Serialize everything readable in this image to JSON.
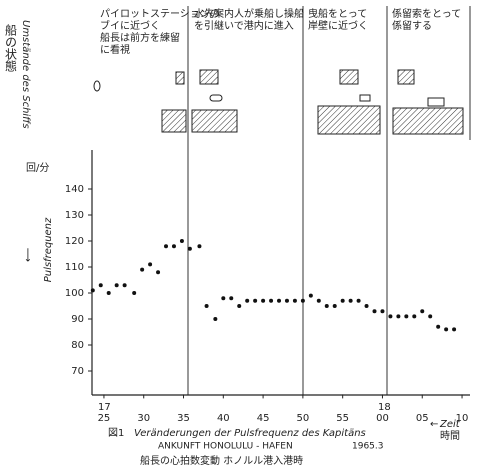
{
  "chart_data": {
    "type": "scatter",
    "title_lines": [
      "Veränderungen der Pulsfrequenz des Kapitäns",
      "ANKUNFT    HONOLULU - HAFEN",
      "1965.3"
    ],
    "figure_label": "図1",
    "caption_ja": "船長の心拍数変動    ホノルル港入港時",
    "ylabel": "Pulsfrequenz",
    "ylabel_unit": "回/分",
    "xlabel": "Zeit",
    "xlabel_ja": "時間",
    "hours": [
      "17",
      "18"
    ],
    "ship_state_ja": "船の状態",
    "ship_state_de": "Umstände des Schiffs",
    "phases": [
      [
        "パイロットステーションの",
        "ブイに近づく",
        "船長は前方を練留",
        "に看視"
      ],
      [
        "水先案内人が乗船し操船",
        "を引継いで港内に進入"
      ],
      [
        "曳船をとって",
        "岸壁に近づく"
      ],
      [
        "係留索をとって",
        "係留する"
      ]
    ],
    "x": [
      23.6,
      24.6,
      25.6,
      26.6,
      27.6,
      28.8,
      29.8,
      30.8,
      31.8,
      32.8,
      33.8,
      34.8,
      35.8,
      37,
      37.9,
      39,
      40,
      41,
      42,
      43,
      44,
      45,
      46,
      47,
      48,
      49,
      50,
      51,
      52,
      53,
      54,
      55,
      56,
      57,
      58,
      59,
      60,
      61,
      62,
      63,
      64,
      65,
      66,
      67,
      68,
      69
    ],
    "values": [
      101,
      103,
      100,
      103,
      103,
      100,
      109,
      111,
      108,
      118,
      118,
      120,
      117,
      118,
      95,
      90,
      98,
      98,
      95,
      97,
      97,
      97,
      97,
      97,
      97,
      97,
      97,
      99,
      97,
      95,
      95,
      97,
      97,
      97,
      95,
      93,
      93,
      91,
      91,
      91,
      91,
      93,
      91,
      87,
      86,
      86
    ],
    "color": "#111111",
    "xlim": [
      23.5,
      71
    ],
    "ylim": [
      61,
      154
    ],
    "xticks": [
      25,
      30,
      35,
      40,
      45,
      50,
      55,
      {
        "value": 60,
        "label": "00"
      },
      {
        "value": 65,
        "label": "05"
      },
      {
        "value": 70,
        "label": "10"
      }
    ],
    "yticks": [
      70,
      80,
      90,
      100,
      110,
      120,
      130,
      140
    ]
  }
}
